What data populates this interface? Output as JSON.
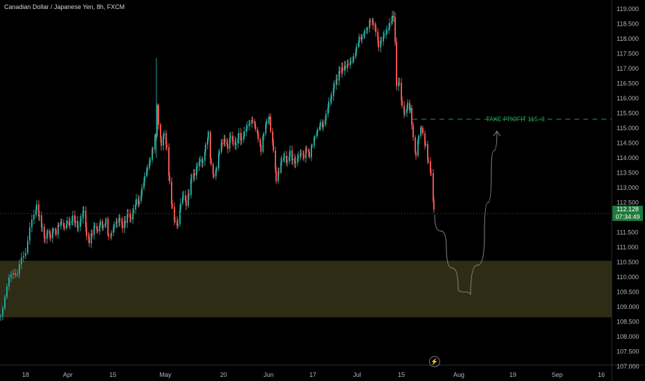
{
  "header": {
    "symbol_title": "Canadian Dollar / Japanese Yen, 8h, FXCM"
  },
  "last_price": {
    "value": "112.128",
    "countdown": "07:34:49"
  },
  "annotation": {
    "take_profit": "TAKE PROFIT 115. 3"
  },
  "colors": {
    "up": "#26a69a",
    "down": "#ef5350",
    "zone": "#2e2c14",
    "tp": "#1e7a3a",
    "projection": "#787b86"
  },
  "icons": {
    "flash": "lightning-icon"
  },
  "chart_data": {
    "type": "candlestick",
    "title": "Canadian Dollar / Japanese Yen, 8h, FXCM",
    "ylim": [
      107.0,
      119.0
    ],
    "y_ticks": [
      "119.000",
      "118.500",
      "118.000",
      "117.500",
      "117.000",
      "116.500",
      "116.000",
      "115.500",
      "115.000",
      "114.500",
      "114.000",
      "113.500",
      "113.000",
      "112.500",
      "112.000",
      "111.500",
      "111.000",
      "110.500",
      "110.000",
      "109.500",
      "109.000",
      "108.500",
      "108.000",
      "107.500",
      "107.000"
    ],
    "x_ticks": [
      "18",
      "Apr",
      "15",
      "May",
      "20",
      "Jun",
      "17",
      "Jul",
      "15",
      "Aug",
      "19",
      "Sep",
      "16"
    ],
    "support_zone": [
      108.65,
      110.55
    ],
    "take_profit_level": 115.3,
    "price_path": [
      [
        0,
        108.7
      ],
      [
        6,
        109.4
      ],
      [
        12,
        109.9
      ],
      [
        18,
        110.2
      ],
      [
        24,
        110.1
      ],
      [
        30,
        110.6
      ],
      [
        36,
        110.9
      ],
      [
        42,
        111.6
      ],
      [
        48,
        112.1
      ],
      [
        52,
        112.4
      ],
      [
        56,
        112.0
      ],
      [
        60,
        111.6
      ],
      [
        64,
        111.2
      ],
      [
        68,
        111.5
      ],
      [
        72,
        111.3
      ],
      [
        76,
        111.6
      ],
      [
        80,
        111.5
      ],
      [
        84,
        111.8
      ],
      [
        88,
        111.9
      ],
      [
        92,
        111.7
      ],
      [
        96,
        111.9
      ],
      [
        100,
        111.8
      ],
      [
        104,
        112.0
      ],
      [
        108,
        111.8
      ],
      [
        112,
        111.6
      ],
      [
        116,
        111.9
      ],
      [
        120,
        112.2
      ],
      [
        124,
        111.4
      ],
      [
        128,
        111.2
      ],
      [
        132,
        111.5
      ],
      [
        136,
        111.8
      ],
      [
        140,
        111.6
      ],
      [
        144,
        111.9
      ],
      [
        148,
        111.7
      ],
      [
        152,
        111.9
      ],
      [
        156,
        111.3
      ],
      [
        160,
        111.4
      ],
      [
        164,
        111.7
      ],
      [
        168,
        111.8
      ],
      [
        172,
        111.9
      ],
      [
        176,
        111.7
      ],
      [
        180,
        111.9
      ],
      [
        184,
        112.2
      ],
      [
        188,
        112.0
      ],
      [
        192,
        112.3
      ],
      [
        196,
        112.6
      ],
      [
        200,
        112.5
      ],
      [
        204,
        112.9
      ],
      [
        208,
        113.3
      ],
      [
        212,
        113.6
      ],
      [
        216,
        113.9
      ],
      [
        220,
        114.3
      ],
      [
        224,
        114.8
      ],
      [
        226,
        115.7
      ],
      [
        228,
        115.2
      ],
      [
        232,
        114.5
      ],
      [
        236,
        114.9
      ],
      [
        240,
        114.4
      ],
      [
        244,
        113.2
      ],
      [
        248,
        112.3
      ],
      [
        252,
        111.8
      ],
      [
        256,
        111.7
      ],
      [
        260,
        112.4
      ],
      [
        264,
        112.7
      ],
      [
        268,
        112.4
      ],
      [
        272,
        112.8
      ],
      [
        276,
        113.4
      ],
      [
        280,
        113.5
      ],
      [
        284,
        113.8
      ],
      [
        288,
        114.0
      ],
      [
        292,
        113.9
      ],
      [
        296,
        114.4
      ],
      [
        300,
        114.8
      ],
      [
        304,
        113.7
      ],
      [
        308,
        113.3
      ],
      [
        312,
        113.6
      ],
      [
        316,
        114.2
      ],
      [
        320,
        114.5
      ],
      [
        324,
        114.6
      ],
      [
        328,
        114.4
      ],
      [
        332,
        114.8
      ],
      [
        336,
        114.6
      ],
      [
        340,
        114.5
      ],
      [
        344,
        114.8
      ],
      [
        348,
        114.6
      ],
      [
        352,
        114.8
      ],
      [
        356,
        115.0
      ],
      [
        360,
        115.1
      ],
      [
        364,
        115.2
      ],
      [
        368,
        115.0
      ],
      [
        372,
        114.7
      ],
      [
        376,
        114.3
      ],
      [
        380,
        114.9
      ],
      [
        384,
        115.3
      ],
      [
        388,
        115.4
      ],
      [
        390,
        114.9
      ],
      [
        394,
        114.3
      ],
      [
        398,
        113.3
      ],
      [
        402,
        113.6
      ],
      [
        406,
        114.0
      ],
      [
        410,
        114.1
      ],
      [
        414,
        113.9
      ],
      [
        418,
        114.2
      ],
      [
        422,
        113.9
      ],
      [
        426,
        113.8
      ],
      [
        430,
        114.0
      ],
      [
        434,
        114.1
      ],
      [
        438,
        114.0
      ],
      [
        442,
        114.3
      ],
      [
        446,
        114.1
      ],
      [
        450,
        114.5
      ],
      [
        454,
        114.8
      ],
      [
        458,
        115.0
      ],
      [
        462,
        115.2
      ],
      [
        466,
        115.1
      ],
      [
        470,
        115.4
      ],
      [
        474,
        115.8
      ],
      [
        478,
        116.0
      ],
      [
        482,
        116.4
      ],
      [
        486,
        116.6
      ],
      [
        490,
        116.9
      ],
      [
        494,
        117.0
      ],
      [
        498,
        117.1
      ],
      [
        502,
        117.2
      ],
      [
        506,
        117.3
      ],
      [
        510,
        117.4
      ],
      [
        514,
        117.7
      ],
      [
        518,
        118.0
      ],
      [
        522,
        118.0
      ],
      [
        526,
        118.2
      ],
      [
        530,
        118.3
      ],
      [
        534,
        118.6
      ],
      [
        538,
        118.5
      ],
      [
        542,
        118.3
      ],
      [
        546,
        117.8
      ],
      [
        550,
        118.0
      ],
      [
        554,
        118.2
      ],
      [
        558,
        118.3
      ],
      [
        562,
        118.5
      ],
      [
        566,
        118.7
      ],
      [
        568,
        118.8
      ],
      [
        570,
        117.8
      ],
      [
        572,
        116.5
      ],
      [
        576,
        116.6
      ],
      [
        580,
        115.8
      ],
      [
        584,
        115.5
      ],
      [
        588,
        115.8
      ],
      [
        592,
        115.6
      ],
      [
        594,
        115.2
      ],
      [
        596,
        114.6
      ],
      [
        600,
        114.0
      ],
      [
        604,
        114.7
      ],
      [
        608,
        115.0
      ],
      [
        610,
        114.8
      ],
      [
        614,
        114.4
      ],
      [
        618,
        113.8
      ],
      [
        622,
        113.4
      ],
      [
        626,
        112.2
      ],
      [
        628,
        112.1
      ]
    ],
    "projection_path": [
      [
        628,
        112.1
      ],
      [
        645,
        111.0
      ],
      [
        662,
        109.6
      ],
      [
        680,
        109.4
      ],
      [
        700,
        111.4
      ],
      [
        710,
        113.6
      ],
      [
        718,
        114.9
      ]
    ]
  }
}
